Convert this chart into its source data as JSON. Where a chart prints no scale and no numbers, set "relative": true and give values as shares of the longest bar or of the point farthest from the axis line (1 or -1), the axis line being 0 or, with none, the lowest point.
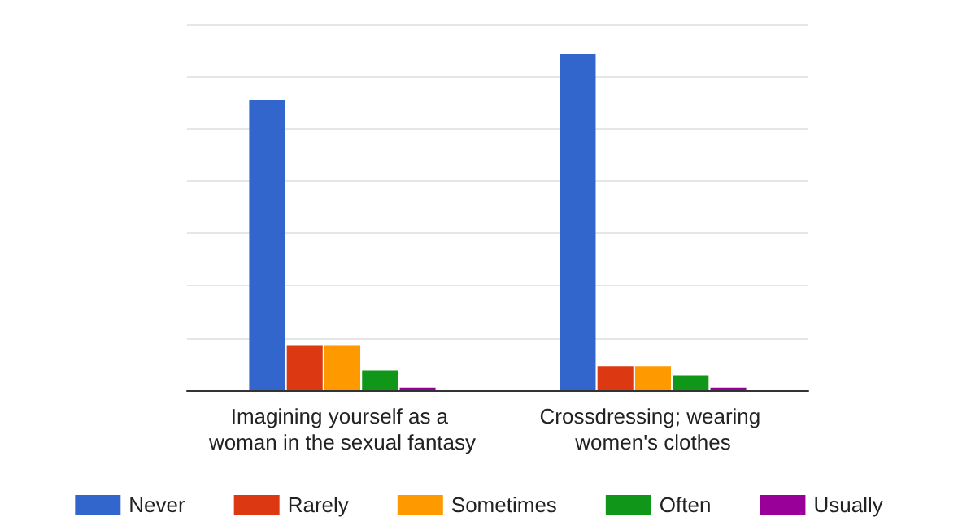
{
  "chart_data": {
    "type": "bar",
    "relative": true,
    "categories": [
      "Imagining yourself as a woman in the sexual fantasy",
      "Crossdressing; wearing women's clothes"
    ],
    "series": [
      {
        "name": "Never",
        "color": "#3366cc",
        "values": [
          0.863,
          1
        ]
      },
      {
        "name": "Rarely",
        "color": "#dc3912",
        "values": [
          0.132,
          0.072
        ]
      },
      {
        "name": "Sometimes",
        "color": "#ff9900",
        "values": [
          0.132,
          0.072
        ]
      },
      {
        "name": "Often",
        "color": "#109618",
        "values": [
          0.059,
          0.045
        ]
      },
      {
        "name": "Usually",
        "color": "#990099",
        "values": [
          0.008,
          0.008
        ]
      }
    ],
    "grid": "y",
    "legend": "bottom"
  }
}
